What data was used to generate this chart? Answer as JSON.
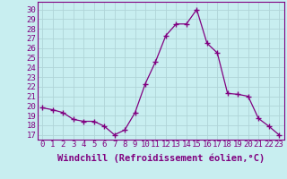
{
  "x": [
    0,
    1,
    2,
    3,
    4,
    5,
    6,
    7,
    8,
    9,
    10,
    11,
    12,
    13,
    14,
    15,
    16,
    17,
    18,
    19,
    20,
    21,
    22,
    23
  ],
  "y": [
    19.8,
    19.6,
    19.3,
    18.6,
    18.4,
    18.4,
    17.9,
    17.0,
    17.5,
    19.3,
    22.3,
    24.6,
    27.3,
    28.5,
    28.5,
    30.0,
    26.5,
    25.5,
    21.3,
    21.2,
    21.0,
    18.7,
    17.9,
    17.0
  ],
  "line_color": "#800080",
  "marker": "+",
  "markersize": 4,
  "bg_color": "#c8eef0",
  "grid_color": "#b0d4d8",
  "ylabel_ticks": [
    17,
    18,
    19,
    20,
    21,
    22,
    23,
    24,
    25,
    26,
    27,
    28,
    29,
    30
  ],
  "ylim": [
    16.5,
    30.8
  ],
  "xlim": [
    -0.5,
    23.5
  ],
  "xlabel": "Windchill (Refroidissement éolien,°C)",
  "tick_fontsize": 6.5,
  "xlabel_fontsize": 7.5
}
